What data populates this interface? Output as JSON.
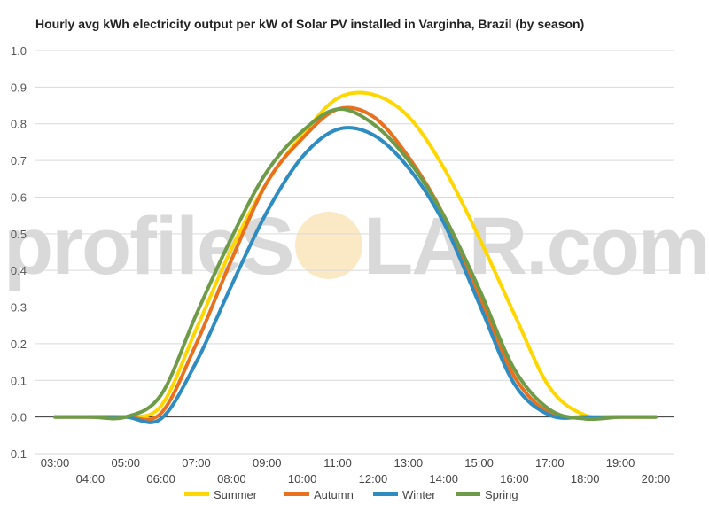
{
  "chart_data": {
    "type": "line",
    "title": "Hourly avg kWh electricity output per kW of Solar PV installed in Varginha, Brazil (by season)",
    "xlabel": "",
    "ylabel": "",
    "ylim": [
      -0.1,
      1.0
    ],
    "yticks": [
      "1.0",
      "0.9",
      "0.8",
      "0.7",
      "0.6",
      "0.5",
      "0.4",
      "0.3",
      "0.2",
      "0.1",
      "0.0",
      "-0.1"
    ],
    "x": [
      "03:00",
      "04:00",
      "05:00",
      "06:00",
      "07:00",
      "08:00",
      "09:00",
      "10:00",
      "11:00",
      "12:00",
      "13:00",
      "14:00",
      "15:00",
      "16:00",
      "17:00",
      "18:00",
      "19:00",
      "20:00"
    ],
    "grid": true,
    "legend": "bottom",
    "series": [
      {
        "name": "Summer",
        "color": "#FFD700",
        "values": [
          0,
          0,
          0,
          0.03,
          0.24,
          0.46,
          0.64,
          0.77,
          0.87,
          0.88,
          0.82,
          0.68,
          0.49,
          0.28,
          0.08,
          0.005,
          0,
          0
        ]
      },
      {
        "name": "Autumn",
        "color": "#E8701F",
        "values": [
          0,
          0,
          0,
          0.01,
          0.2,
          0.43,
          0.64,
          0.76,
          0.84,
          0.82,
          0.71,
          0.55,
          0.33,
          0.11,
          0.01,
          0,
          0,
          0
        ]
      },
      {
        "name": "Winter",
        "color": "#2E8CC0",
        "values": [
          0,
          0,
          0,
          -0.005,
          0.15,
          0.36,
          0.56,
          0.71,
          0.785,
          0.77,
          0.68,
          0.53,
          0.31,
          0.09,
          0.005,
          0,
          0,
          0
        ]
      },
      {
        "name": "Spring",
        "color": "#6E9B48",
        "values": [
          0,
          0,
          0,
          0.06,
          0.28,
          0.49,
          0.67,
          0.78,
          0.84,
          0.8,
          0.7,
          0.55,
          0.35,
          0.13,
          0.02,
          -0.005,
          0,
          0
        ]
      }
    ]
  },
  "watermark": {
    "left": "profileS",
    "right": "LAR.com"
  }
}
